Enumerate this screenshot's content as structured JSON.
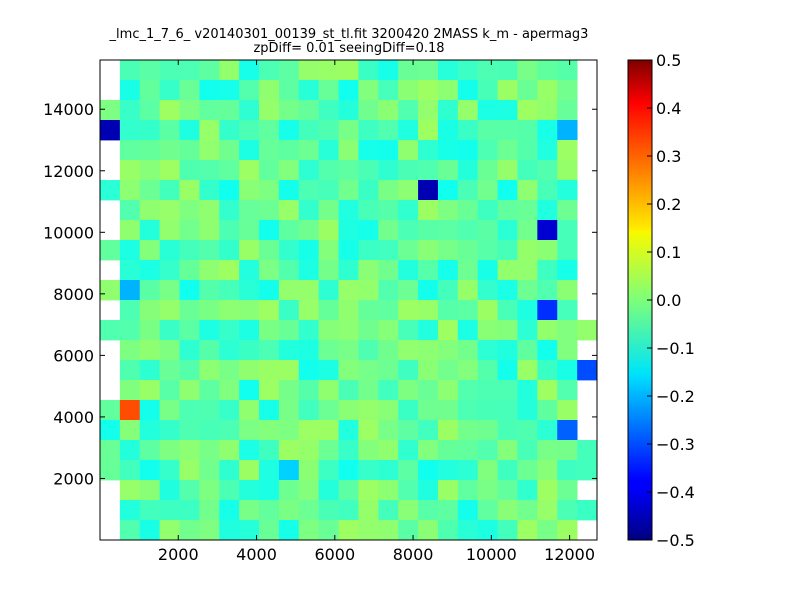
{
  "chart_data": {
    "type": "heatmap",
    "title": "_lmc_1_7_6_ v20140301_00139_st_tl.fit 3200420 2MASS k_m - apermag3",
    "subtitle": "zpDiff= 0.01 seeingDiff=0.18",
    "xlabel": "",
    "ylabel": "",
    "xlim": [
      0,
      12700
    ],
    "ylim": [
      0,
      15600
    ],
    "x_ticks": [
      2000,
      4000,
      6000,
      8000,
      10000,
      12000
    ],
    "y_ticks": [
      2000,
      4000,
      6000,
      8000,
      10000,
      12000,
      14000
    ],
    "x_tick_labels": [
      "2000",
      "4000",
      "6000",
      "8000",
      "10000",
      "12000"
    ],
    "y_tick_labels": [
      "2000",
      "4000",
      "6000",
      "8000",
      "10000",
      "12000",
      "14000"
    ],
    "colorbar": {
      "colormap": "jet",
      "min": -0.5,
      "max": 0.5,
      "ticks": [
        0.5,
        0.4,
        0.3,
        0.2,
        0.1,
        0.0,
        -0.1,
        -0.2,
        -0.3,
        -0.4,
        -0.5
      ],
      "tick_labels": [
        "0.5",
        "0.4",
        "0.3",
        "0.2",
        "0.1",
        "0.0",
        "−0.1",
        "−0.2",
        "−0.3",
        "−0.4",
        "−0.5"
      ]
    },
    "grid": false,
    "heatmap_rows": 24,
    "heatmap_cols": 25,
    "empty_regions": [
      "left-edge",
      "right-edge"
    ],
    "notable_cells": [
      {
        "x": 200,
        "y": 13600,
        "value": -0.45
      },
      {
        "x": 8200,
        "y": 11600,
        "value": -0.45
      },
      {
        "x": 11300,
        "y": 10000,
        "value": -0.42
      },
      {
        "x": 11600,
        "y": 7600,
        "value": -0.33
      },
      {
        "x": 12500,
        "y": 5600,
        "value": -0.3
      },
      {
        "x": 12100,
        "y": 3600,
        "value": -0.28
      },
      {
        "x": 600,
        "y": 4100,
        "value": 0.3
      },
      {
        "x": 4800,
        "y": 2600,
        "value": -0.17
      },
      {
        "x": 12100,
        "y": 13600,
        "value": -0.2
      },
      {
        "x": 600,
        "y": 8100,
        "value": -0.2
      }
    ]
  }
}
